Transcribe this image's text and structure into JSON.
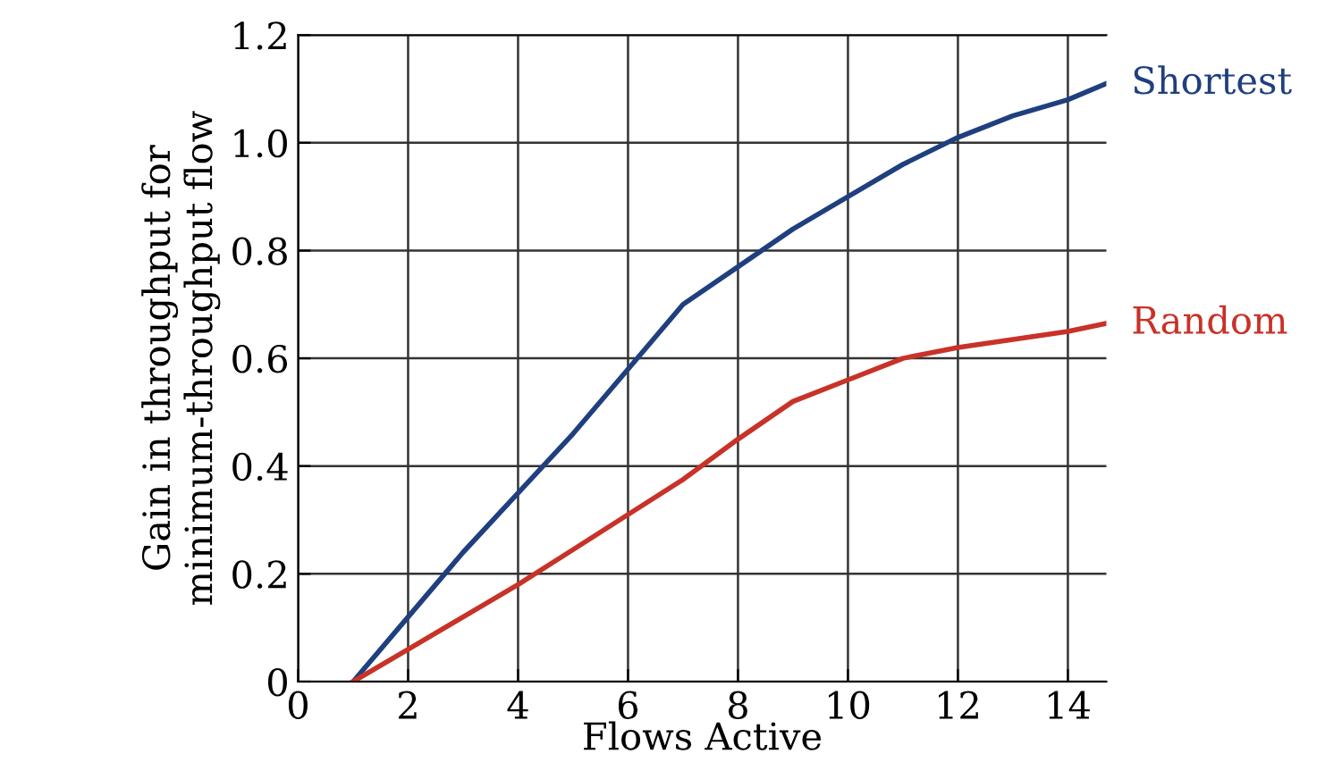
{
  "chart_data": {
    "type": "line",
    "xlabel": "Flows Active",
    "ylabel": "Gain in throughput for\nminimum-throughput flow",
    "xlim": [
      0,
      14.7
    ],
    "ylim": [
      0,
      1.2
    ],
    "xticks": [
      0,
      2,
      4,
      6,
      8,
      10,
      12,
      14
    ],
    "yticks": [
      0,
      0.2,
      0.4,
      0.6,
      0.8,
      {
        "value": 1,
        "label": "1.0"
      },
      1.2
    ],
    "grid": true,
    "legend": false,
    "series": [
      {
        "name": "Shortest",
        "color": "#1f3f7f",
        "x": [
          1,
          2,
          3,
          4,
          5,
          6,
          7,
          8,
          9,
          10,
          11,
          12,
          13,
          14,
          14.7
        ],
        "values": [
          0,
          0.12,
          0.24,
          0.35,
          0.46,
          0.58,
          0.7,
          0.77,
          0.84,
          0.9,
          0.96,
          1.01,
          1.05,
          1.08,
          1.11
        ]
      },
      {
        "name": "Random",
        "color": "#c83228",
        "x": [
          1,
          2,
          3,
          4,
          5,
          6,
          7,
          8,
          9,
          10,
          11,
          12,
          13,
          14,
          14.7
        ],
        "values": [
          0,
          0.06,
          0.12,
          0.18,
          0.245,
          0.31,
          0.375,
          0.45,
          0.52,
          0.56,
          0.6,
          0.62,
          0.635,
          0.65,
          0.665
        ]
      }
    ]
  }
}
